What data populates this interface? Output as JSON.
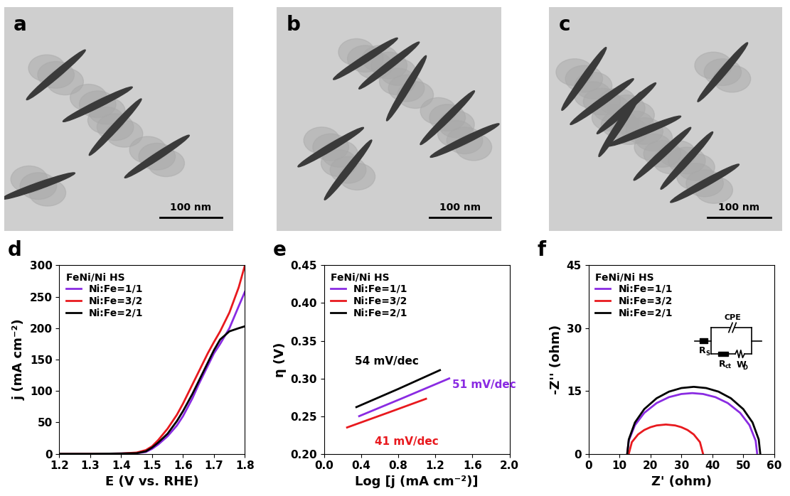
{
  "panels": [
    {
      "label": "a",
      "type": "image",
      "scale_bar": "100 nm"
    },
    {
      "label": "b",
      "type": "image",
      "scale_bar": "100 nm"
    },
    {
      "label": "c",
      "type": "image",
      "scale_bar": "100 nm"
    }
  ],
  "chart_data": [
    {
      "panel": "d",
      "type": "line",
      "x_label": "E (V vs. RHE)",
      "y_label": "j (mA cm⁻²)",
      "legend": "upper left",
      "legend_title": "FeNi/Ni HS",
      "xlim": [
        1.2,
        1.8
      ],
      "xticks": [
        1.2,
        1.3,
        1.4,
        1.5,
        1.6,
        1.7,
        1.8
      ],
      "ylim": [
        0,
        300
      ],
      "yticks": [
        0,
        50,
        100,
        150,
        200,
        250,
        300
      ],
      "x": [
        1.2,
        1.3,
        1.4,
        1.45,
        1.48,
        1.5,
        1.52,
        1.55,
        1.58,
        1.6,
        1.63,
        1.65,
        1.68,
        1.7,
        1.72,
        1.75,
        1.78,
        1.8
      ],
      "series": [
        {
          "name": "Ni:Fe=1/1",
          "color": "#8a2be2",
          "values": [
            0,
            0,
            0.5,
            1,
            3,
            8,
            15,
            28,
            45,
            60,
            88,
            110,
            140,
            160,
            175,
            200,
            235,
            258
          ]
        },
        {
          "name": "Ni:Fe=3/2",
          "color": "#e8191e",
          "values": [
            0,
            0,
            0.5,
            2,
            6,
            12,
            22,
            40,
            62,
            80,
            110,
            130,
            160,
            178,
            195,
            225,
            265,
            300
          ]
        },
        {
          "name": "Ni:Fe=2/1",
          "color": "#000000",
          "values": [
            0,
            0,
            0.5,
            1,
            4,
            10,
            18,
            32,
            52,
            68,
            95,
            115,
            145,
            165,
            182,
            195,
            200,
            203
          ]
        }
      ]
    },
    {
      "panel": "e",
      "type": "line",
      "x_label": "Log [j (mA cm⁻²)]",
      "y_label": "η (V)",
      "legend": "upper left",
      "legend_title": "FeNi/Ni HS",
      "xlim": [
        0.0,
        2.0
      ],
      "xticks": [
        0.0,
        0.4,
        0.8,
        1.2,
        1.6,
        2.0
      ],
      "ylim": [
        0.2,
        0.45
      ],
      "yticks": [
        {
          "value": 0.2,
          "label": "0.20"
        },
        {
          "value": 0.25,
          "label": "0.25"
        },
        {
          "value": 0.3,
          "label": "0.30"
        },
        {
          "value": 0.35,
          "label": "0.35"
        },
        {
          "value": 0.4,
          "label": "0.40"
        },
        {
          "value": 0.45,
          "label": "0.45"
        }
      ],
      "series": [
        {
          "name": "Ni:Fe=1/1",
          "color": "#8a2be2",
          "x": [
            0.38,
            0.85,
            1.35
          ],
          "values": [
            0.25,
            0.274,
            0.3
          ]
        },
        {
          "name": "Ni:Fe=3/2",
          "color": "#e8191e",
          "x": [
            0.25,
            0.7,
            1.1
          ],
          "values": [
            0.235,
            0.255,
            0.273
          ]
        },
        {
          "name": "Ni:Fe=2/1",
          "color": "#000000",
          "x": [
            0.35,
            0.8,
            1.25
          ],
          "values": [
            0.262,
            0.286,
            0.311
          ]
        }
      ],
      "annotations": [
        {
          "text": "54 mV/dec",
          "x": 0.33,
          "y": 0.318,
          "color": "#000000"
        },
        {
          "text": "51 mV/dec",
          "x": 1.38,
          "y": 0.287,
          "color": "#8a2be2"
        },
        {
          "text": "41 mV/dec",
          "x": 0.55,
          "y": 0.212,
          "color": "#e8191e"
        }
      ]
    },
    {
      "panel": "f",
      "type": "line",
      "x_label": "Z' (ohm)",
      "y_label": "-Z'' (ohm)",
      "legend": "upper left",
      "legend_title": "FeNi/Ni HS",
      "xlim": [
        0,
        60
      ],
      "xticks": [
        0,
        10,
        20,
        30,
        40,
        50,
        60
      ],
      "ylim": [
        0,
        45
      ],
      "yticks": [
        0,
        15,
        30,
        45
      ],
      "series": [
        {
          "name": "Ni:Fe=1/1",
          "color": "#8a2be2",
          "x": [
            12.5,
            13,
            15,
            18,
            22,
            26,
            30,
            33.5,
            37,
            41,
            45,
            49,
            52,
            54,
            54.5
          ],
          "values": [
            0,
            3.15,
            6.86,
            9.78,
            12.12,
            13.54,
            14.29,
            14.5,
            14.29,
            13.54,
            12.12,
            9.78,
            6.86,
            3.15,
            0
          ]
        },
        {
          "name": "Ni:Fe=3/2",
          "color": "#e8191e",
          "x": [
            13,
            14,
            16,
            18,
            20,
            22,
            25,
            28,
            30,
            32,
            34,
            36,
            37
          ],
          "values": [
            0,
            2.8,
            4.63,
            5.69,
            6.36,
            6.78,
            7.0,
            6.78,
            6.36,
            5.69,
            4.63,
            2.8,
            0
          ]
        },
        {
          "name": "Ni:Fe=2/1",
          "color": "#000000",
          "x": [
            12.5,
            13,
            15,
            18,
            22,
            26,
            30,
            34,
            38,
            42,
            46,
            50,
            53,
            55,
            55.5
          ],
          "values": [
            0,
            3.43,
            7.49,
            10.68,
            13.27,
            14.85,
            15.71,
            16.0,
            15.71,
            14.85,
            13.27,
            10.68,
            7.49,
            3.43,
            0
          ]
        }
      ],
      "circuit": {
        "cpe": "CPE",
        "rs": {
          "main": "R",
          "sub": "S"
        },
        "rct": {
          "main": "R",
          "sub": "ct"
        },
        "wd": {
          "main": "W",
          "sub": "D"
        }
      }
    }
  ]
}
